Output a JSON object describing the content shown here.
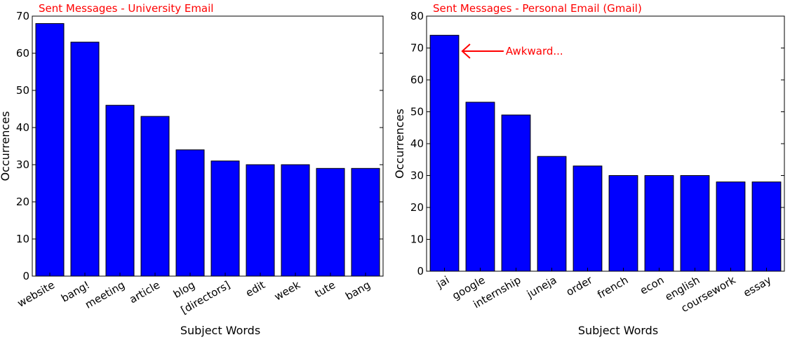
{
  "chart_data": [
    {
      "type": "bar",
      "title": "Sent Messages - University Email",
      "xlabel": "Subject Words",
      "ylabel": "Occurrences",
      "ylim": [
        0,
        70
      ],
      "yticks": [
        0,
        10,
        20,
        30,
        40,
        50,
        60,
        70
      ],
      "categories": [
        "website",
        "bang!",
        "meeting",
        "article",
        "blog",
        "[directors]",
        "edit",
        "week",
        "tute",
        "bang"
      ],
      "values": [
        68,
        63,
        46,
        43,
        34,
        31,
        30,
        30,
        29,
        29
      ],
      "bar_color": "#0000ff",
      "title_color": "#ff0000",
      "annotations": []
    },
    {
      "type": "bar",
      "title": "Sent Messages - Personal Email (Gmail)",
      "xlabel": "Subject Words",
      "ylabel": "Occurrences",
      "ylim": [
        0,
        80
      ],
      "yticks": [
        0,
        10,
        20,
        30,
        40,
        50,
        60,
        70,
        80
      ],
      "categories": [
        "jai",
        "google",
        "internship",
        "juneja",
        "order",
        "french",
        "econ",
        "english",
        "coursework",
        "essay"
      ],
      "values": [
        74,
        53,
        49,
        36,
        33,
        30,
        30,
        30,
        28,
        28
      ],
      "bar_color": "#0000ff",
      "title_color": "#ff0000",
      "annotations": [
        {
          "text": "Awkward...",
          "target_category": "jai",
          "target_value": 69,
          "color": "#ff0000"
        }
      ]
    }
  ]
}
